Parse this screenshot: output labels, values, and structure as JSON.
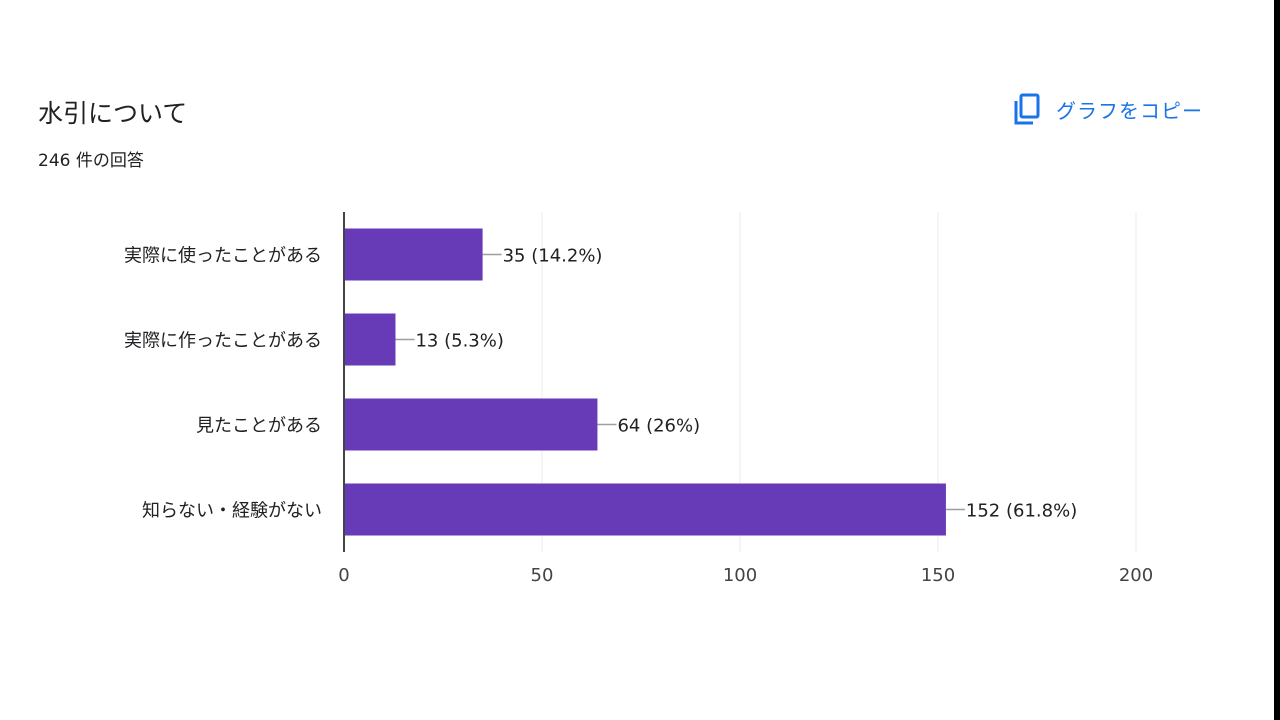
{
  "header": {
    "title": "水引について",
    "response_count": "246 件の回答"
  },
  "toolbar": {
    "copy_label": "グラフをコピー",
    "copy_icon": "copy-icon"
  },
  "colors": {
    "bar": "#673ab7",
    "link": "#1a73e8",
    "grid": "#ebebeb",
    "axis": "#444444",
    "text": "#202124"
  },
  "chart_data": {
    "type": "bar",
    "orientation": "horizontal",
    "categories": [
      "実際に使ったことがある",
      "実際に作ったことがある",
      "見たことがある",
      "知らない・経験がない"
    ],
    "values": [
      35,
      13,
      64,
      152
    ],
    "data_labels": [
      "35 (14.2%)",
      "13 (5.3%)",
      "64 (26%)",
      "152 (61.8%)"
    ],
    "xlim": [
      0,
      200
    ],
    "x_ticks": [
      0,
      50,
      100,
      150,
      200
    ],
    "grid": true,
    "legend": "none"
  }
}
